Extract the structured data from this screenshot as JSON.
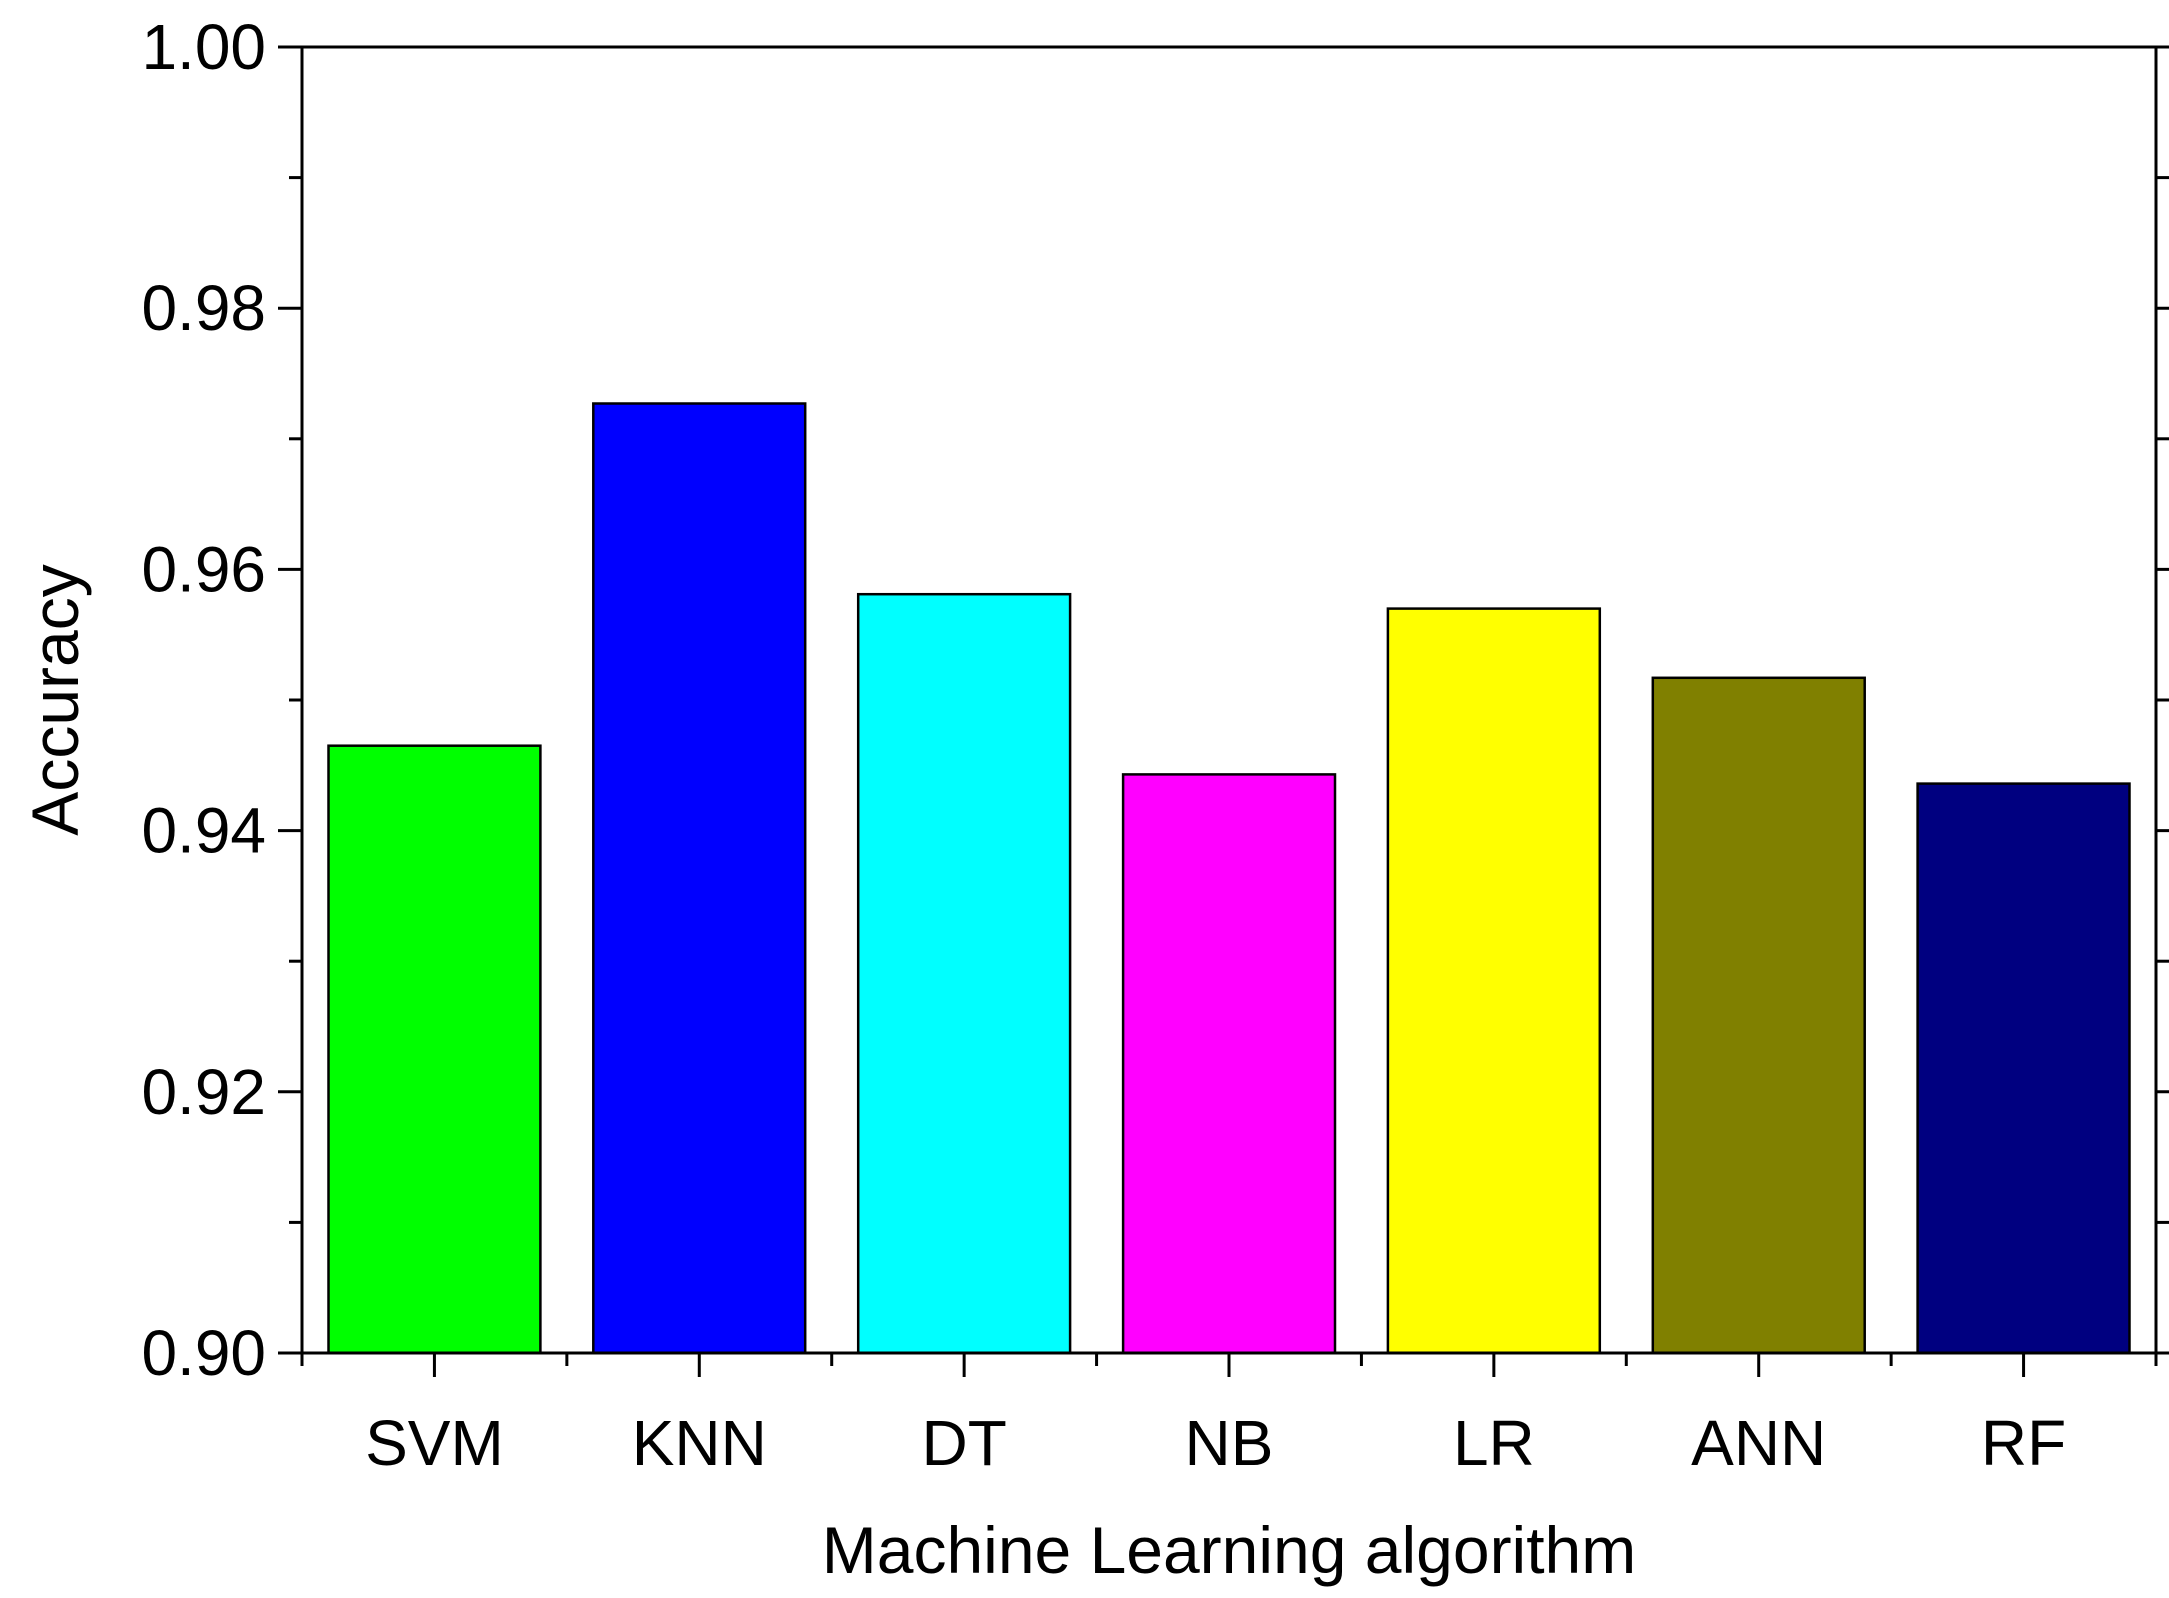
{
  "chart_data": {
    "type": "bar",
    "title": "",
    "xlabel": "Machine Learning algorithm",
    "ylabel": "Accuracy",
    "categories": [
      "SVM",
      "KNN",
      "DT",
      "NB",
      "LR",
      "ANN",
      "RF"
    ],
    "values": [
      0.9465,
      0.9727,
      0.9581,
      0.9443,
      0.957,
      0.9517,
      0.9436
    ],
    "colors": [
      "#00ff00",
      "#0000ff",
      "#00ffff",
      "#ff00ff",
      "#ffff00",
      "#808000",
      "#000080"
    ],
    "ylim": [
      0.9,
      1.0
    ],
    "yticks": [
      "0.90",
      "0.92",
      "0.94",
      "0.96",
      "0.98",
      "1.00"
    ],
    "grid": false,
    "legend": "none"
  }
}
